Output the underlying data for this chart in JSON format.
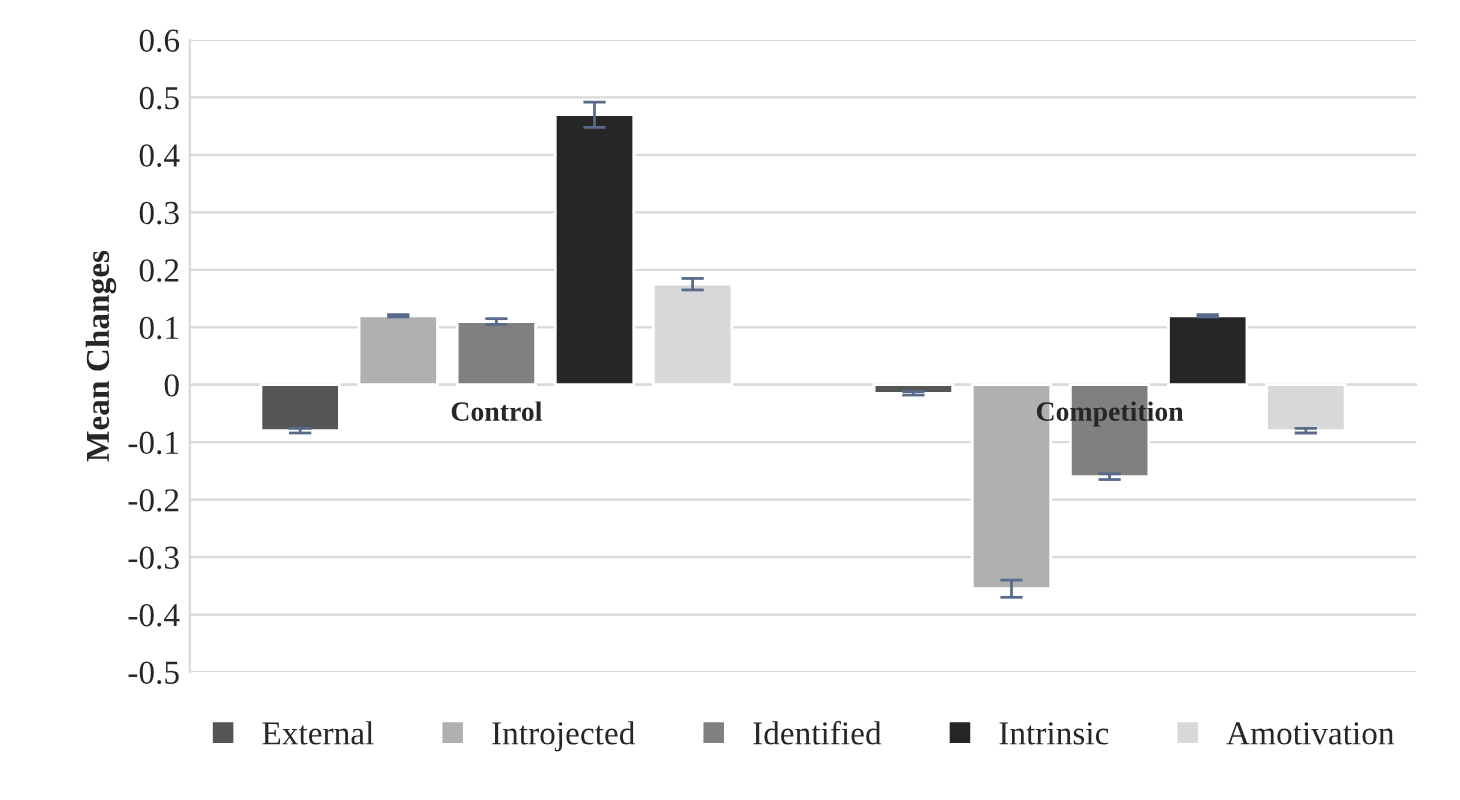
{
  "chart_data": {
    "type": "bar",
    "ylabel": "Mean Changes",
    "categories": [
      "Control",
      "Competition"
    ],
    "series": [
      {
        "name": "External",
        "color": "#555555",
        "values": [
          -0.08,
          -0.015
        ],
        "errors": [
          0.004,
          0.003
        ]
      },
      {
        "name": "Introjected",
        "color": "#b0b0b0",
        "values": [
          0.12,
          -0.355
        ],
        "errors": [
          0.002,
          0.015
        ]
      },
      {
        "name": "Identified",
        "color": "#808080",
        "values": [
          0.11,
          -0.16
        ],
        "errors": [
          0.005,
          0.005
        ]
      },
      {
        "name": "Intrinsic",
        "color": "#262626",
        "values": [
          0.47,
          0.12
        ],
        "errors": [
          0.022,
          0.002
        ]
      },
      {
        "name": "Amotivation",
        "color": "#d8d8d8",
        "values": [
          0.175,
          -0.08
        ],
        "errors": [
          0.01,
          0.004
        ]
      }
    ],
    "ylim": [
      -0.5,
      0.6
    ],
    "yticks": [
      -0.5,
      -0.4,
      -0.3,
      -0.2,
      -0.1,
      0,
      0.1,
      0.2,
      0.3,
      0.4,
      0.5,
      0.6
    ],
    "grid": "y",
    "legend": "bottom"
  }
}
